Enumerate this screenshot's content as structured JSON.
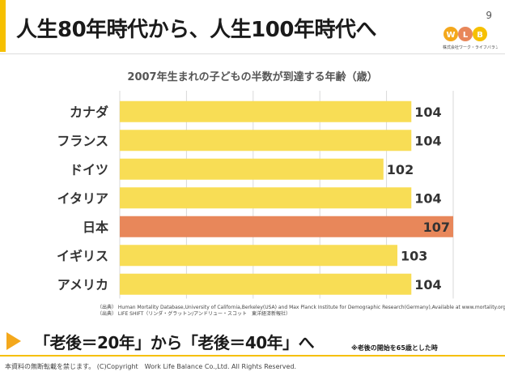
{
  "slide": {
    "title": "人生80年時代から、人生100年時代へ",
    "page_number": "9",
    "logo_text": "株式会社ワーク・ライフバランス",
    "accent_color": "#f6c000"
  },
  "chart_data": {
    "type": "bar",
    "orientation": "horizontal",
    "title": "2007年生まれの子どもの半数が到達する年齢（歳）",
    "categories": [
      "カナダ",
      "フランス",
      "ドイツ",
      "イタリア",
      "日本",
      "イギリス",
      "アメリカ"
    ],
    "values": [
      104,
      104,
      102,
      104,
      107,
      103,
      104
    ],
    "highlight": "日本",
    "bar_color": "#f8dd55",
    "highlight_color": "#e8875a",
    "grid": true,
    "xlabel": "",
    "ylabel": ""
  },
  "sources": [
    "（出典） Human Mortality Database,University of California,Berkeley(USA) and Max Planck Institute for Demographic Research(Germany),Available at www.mortality.org",
    "（出典） LIFE SHIFT（リンダ・グラットン/アンドリュー・スコット　東洋経済新報社）"
  ],
  "message": {
    "text": "「老後＝20年」から「老後＝40年」へ",
    "note": "※老後の開始を65歳とした時"
  },
  "footer": {
    "copyright": "本資料の無断転載を禁じます。 (C)Copyright　Work Life Balance Co.,Ltd. All Rights Reserved."
  }
}
